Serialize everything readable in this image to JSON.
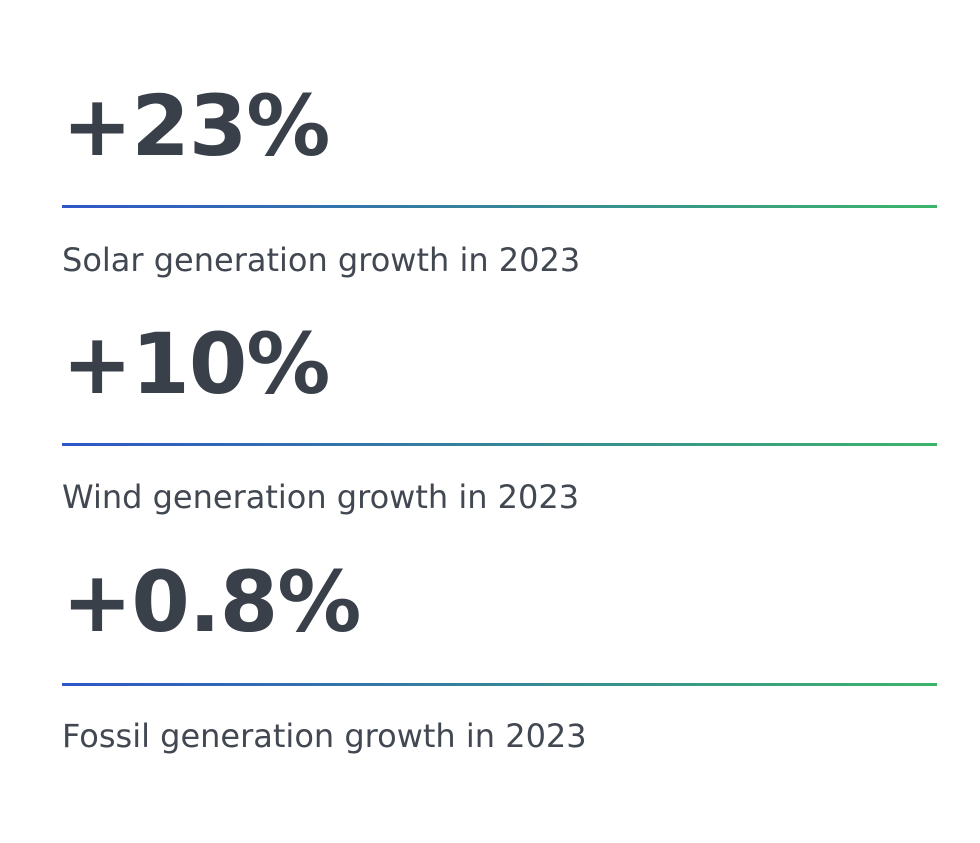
{
  "stats": [
    {
      "value": "+23%",
      "label": "Solar generation growth in 2023"
    },
    {
      "value": "+10%",
      "label": "Wind generation growth in 2023"
    },
    {
      "value": "+0.8%",
      "label": "Fossil generation growth in 2023"
    }
  ],
  "colors": {
    "text": "#3a404a",
    "divider_start": "#2f56c9",
    "divider_end": "#3cb56a",
    "background": "#ffffff"
  }
}
